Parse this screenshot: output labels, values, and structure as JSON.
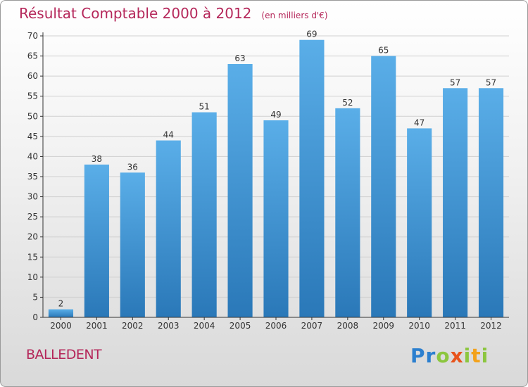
{
  "header": {
    "title": "Résultat Comptable 2000 à 2012",
    "subtitle": "(en milliers d'€)"
  },
  "commune": "BALLEDENT",
  "brand": {
    "letters": [
      "P",
      "r",
      "o",
      "x",
      "i",
      "t",
      "i"
    ],
    "colors": [
      "#2b7fcf",
      "#2b7fcf",
      "#8cc63f",
      "#e8541c",
      "#8cc63f",
      "#f3a21b",
      "#8cc63f"
    ]
  },
  "colors": {
    "bar_light": "#5aaee8",
    "bar_dark": "#2a78b8",
    "grid": "#d0d0d0",
    "axis": "#333333",
    "title": "#b5275a"
  },
  "chart_data": {
    "type": "bar",
    "title": "Résultat Comptable 2000 à 2012",
    "subtitle": "(en milliers d'€)",
    "xlabel": "",
    "ylabel": "",
    "categories": [
      "2000",
      "2001",
      "2002",
      "2003",
      "2004",
      "2005",
      "2006",
      "2007",
      "2008",
      "2009",
      "2010",
      "2011",
      "2012"
    ],
    "values": [
      2,
      38,
      36,
      44,
      51,
      63,
      49,
      69,
      52,
      65,
      47,
      57,
      57
    ],
    "ylim": [
      0,
      70
    ],
    "yticks": [
      0,
      5,
      10,
      15,
      20,
      25,
      30,
      35,
      40,
      45,
      50,
      55,
      60,
      65,
      70
    ],
    "grid": true
  }
}
